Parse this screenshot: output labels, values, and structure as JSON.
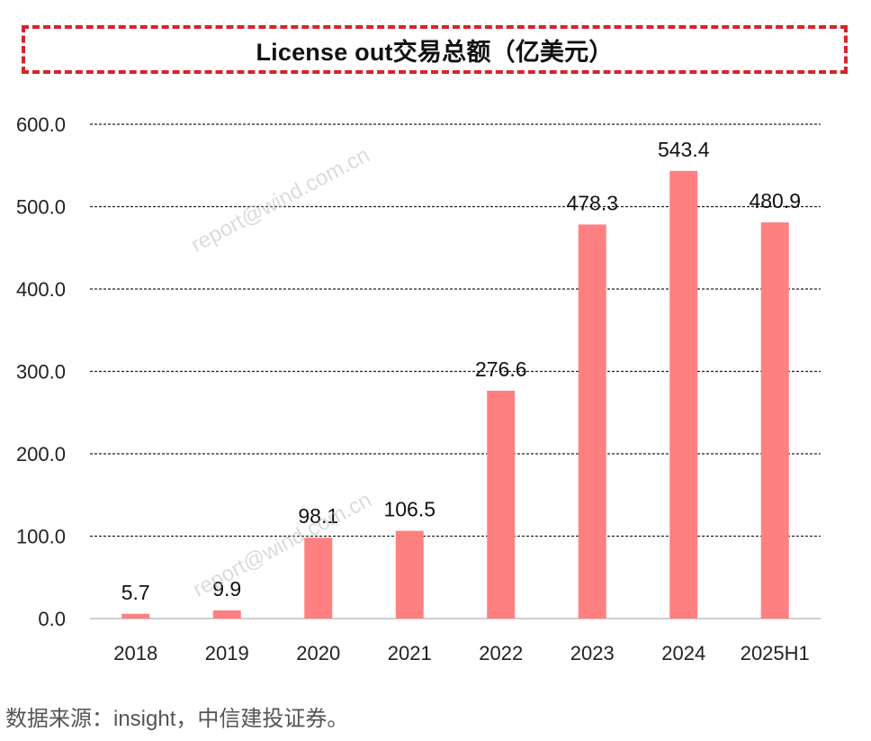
{
  "header": {
    "title": "License out交易总额（亿美元）"
  },
  "chart_data": {
    "type": "bar",
    "title": "License out交易总额（亿美元）",
    "xlabel": "",
    "ylabel": "",
    "categories": [
      "2018",
      "2019",
      "2020",
      "2021",
      "2022",
      "2023",
      "2024",
      "2025H1"
    ],
    "values": [
      5.7,
      9.9,
      98.1,
      106.5,
      276.6,
      478.3,
      543.4,
      480.9
    ],
    "value_labels": [
      "5.7",
      "9.9",
      "98.1",
      "106.5",
      "276.6",
      "478.3",
      "543.4",
      "480.9"
    ],
    "ylim": [
      0,
      600
    ],
    "yticks": [
      "0.0",
      "100.0",
      "200.0",
      "300.0",
      "400.0",
      "500.0",
      "600.0"
    ],
    "grid": "dashed-horizontal",
    "legend": "none",
    "bar_color": "#ff8080"
  },
  "watermarks": [
    "report@wind.com.cn",
    "report@wind.com.cn"
  ],
  "footer": {
    "source": "数据来源：insight，中信建投证券。"
  }
}
